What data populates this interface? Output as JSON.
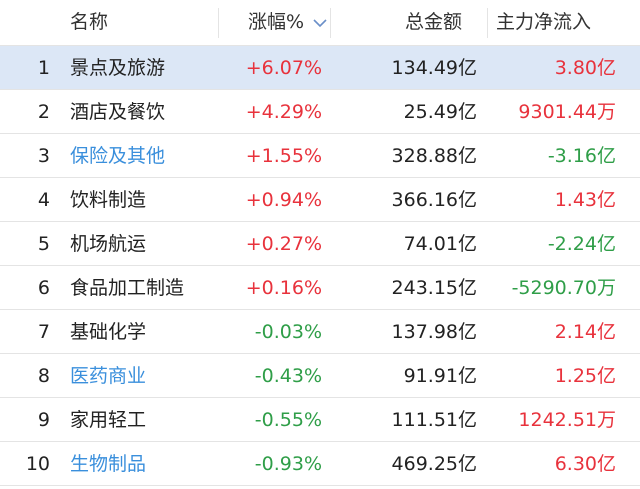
{
  "header": {
    "name": "名称",
    "change": "涨幅%",
    "amount": "总金额",
    "flow": "主力净流入"
  },
  "table": {
    "rows": [
      {
        "index": 1,
        "name": "景点及旅游",
        "change": "+6.07%",
        "amount": "134.49亿",
        "flow": "3.80亿",
        "name_color": "#222222"
      },
      {
        "index": 2,
        "name": "酒店及餐饮",
        "change": "+4.29%",
        "amount": "25.49亿",
        "flow": "9301.44万",
        "name_color": "#222222"
      },
      {
        "index": 3,
        "name": "保险及其他",
        "change": "+1.55%",
        "amount": "328.88亿",
        "flow": "-3.16亿",
        "name_color": "#3a8fdc"
      },
      {
        "index": 4,
        "name": "饮料制造",
        "change": "+0.94%",
        "amount": "366.16亿",
        "flow": "1.43亿",
        "name_color": "#222222"
      },
      {
        "index": 5,
        "name": "机场航运",
        "change": "+0.27%",
        "amount": "74.01亿",
        "flow": "-2.24亿",
        "name_color": "#222222"
      },
      {
        "index": 6,
        "name": "食品加工制造",
        "change": "+0.16%",
        "amount": "243.15亿",
        "flow": "-5290.70万",
        "name_color": "#222222"
      },
      {
        "index": 7,
        "name": "基础化学",
        "change": "-0.03%",
        "amount": "137.98亿",
        "flow": "2.14亿",
        "name_color": "#222222"
      },
      {
        "index": 8,
        "name": "医药商业",
        "change": "-0.43%",
        "amount": "91.91亿",
        "flow": "1.25亿",
        "name_color": "#3a8fdc"
      },
      {
        "index": 9,
        "name": "家用轻工",
        "change": "-0.55%",
        "amount": "111.51亿",
        "flow": "1242.51万",
        "name_color": "#222222"
      },
      {
        "index": 10,
        "name": "生物制品",
        "change": "-0.93%",
        "amount": "469.25亿",
        "flow": "6.30亿",
        "name_color": "#3a8fdc"
      }
    ]
  }
}
